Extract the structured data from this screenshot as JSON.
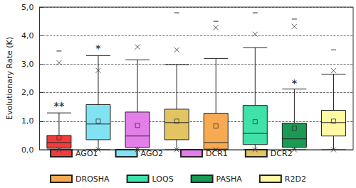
{
  "chart_data": {
    "type": "boxplot",
    "y_label": "Evolutionary Rate (K)",
    "categories": [
      "AGO1",
      "AGO2",
      "DCR1",
      "DCR2",
      "DROSHA",
      "LOQS",
      "PASHA",
      "R2D2"
    ],
    "colors": [
      "#f03c3c",
      "#80e2f2",
      "#e47fea",
      "#e2c462",
      "#f7aa52",
      "#3fe2a8",
      "#1a9a52",
      "#fff9a4"
    ],
    "stats": {
      "whisker_low": [
        0,
        0,
        0,
        0,
        0,
        0,
        0,
        0
      ],
      "q1": [
        0.05,
        0.35,
        0.08,
        0.35,
        0.02,
        0.18,
        0.08,
        0.48
      ],
      "median": [
        0.25,
        0.9,
        0.48,
        0.95,
        0.25,
        0.57,
        0.38,
        0.95
      ],
      "q3": [
        0.5,
        1.58,
        1.32,
        1.42,
        1.28,
        1.55,
        0.93,
        1.38
      ],
      "whisker_high": [
        1.29,
        3.3,
        3.15,
        2.98,
        3.2,
        3.58,
        2.13,
        2.65
      ],
      "mean": [
        0.42,
        1.0,
        0.85,
        1.0,
        0.83,
        0.98,
        0.75,
        1.0
      ],
      "cross_low": [
        0,
        0,
        0,
        0,
        0,
        0,
        0,
        0
      ],
      "cross_high": [
        3.05,
        2.78,
        3.6,
        3.5,
        4.28,
        4.05,
        4.32,
        2.77
      ],
      "dash_low": [
        0,
        0,
        0,
        0,
        0,
        0,
        0,
        0
      ],
      "dash_high": [
        3.46,
        null,
        null,
        4.8,
        4.5,
        4.8,
        4.58,
        3.5
      ]
    },
    "annotations": [
      {
        "category": "AGO1",
        "value": 1.55,
        "text": "**"
      },
      {
        "category": "AGO2",
        "value": 3.55,
        "text": "*"
      },
      {
        "category": "PASHA",
        "value": 2.35,
        "text": "*"
      }
    ],
    "ylim": [
      0,
      5
    ],
    "yticks": [
      {
        "value": 0,
        "label": "0,0"
      },
      {
        "value": 1,
        "label": "1,0"
      },
      {
        "value": 2,
        "label": "2,0"
      },
      {
        "value": 3,
        "label": "3,0"
      },
      {
        "value": 4,
        "label": "4,0"
      },
      {
        "value": 5,
        "label": "5,0"
      }
    ],
    "grid": true,
    "tick_labels": "y",
    "legend": "bottom"
  }
}
